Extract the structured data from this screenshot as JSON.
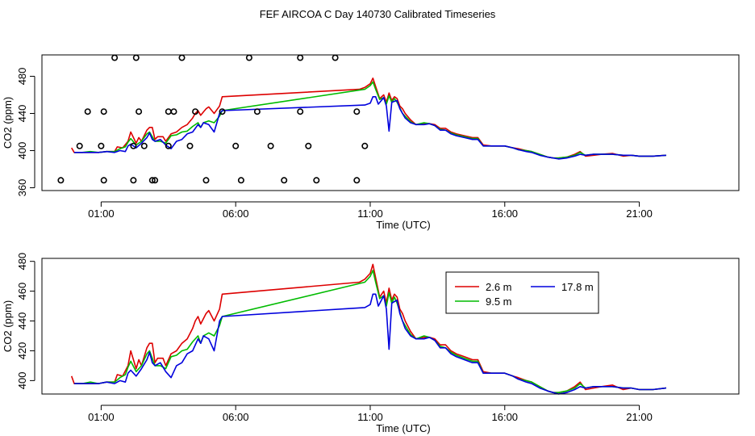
{
  "title": "FEF AIRCOA C  Day 140730  Calibrated Timeseries",
  "colors": {
    "s2_6": "#dd0000",
    "s9_5": "#00bb00",
    "s17_8": "#0000dd",
    "axis": "#000000"
  },
  "chart_data": [
    {
      "type": "line",
      "name": "top-panel",
      "xlabel": "Time (UTC)",
      "ylabel": "CO2 (ppm)",
      "xlim": [
        -1.2,
        24.7
      ],
      "ylim": [
        357,
        503
      ],
      "xticks": [
        1,
        6,
        11,
        16,
        21
      ],
      "xtick_labels": [
        "01:00",
        "06:00",
        "11:00",
        "16:00",
        "21:00"
      ],
      "yticks": [
        360,
        400,
        440,
        480
      ],
      "ytick_labels": [
        "360",
        "400",
        "440",
        "480"
      ],
      "markers": {
        "symbol": "open-circle",
        "points": [
          [
            1.0,
            405
          ],
          [
            0.5,
            442
          ],
          [
            -0.5,
            368
          ],
          [
            0.2,
            405
          ],
          [
            1.1,
            442
          ],
          [
            1.1,
            368
          ],
          [
            3.0,
            368
          ],
          [
            2.6,
            405
          ],
          [
            2.2,
            368
          ],
          [
            2.4,
            442
          ],
          [
            2.2,
            405
          ],
          [
            2.3,
            500
          ],
          [
            1.5,
            500
          ],
          [
            3.5,
            442
          ],
          [
            4.0,
            500
          ],
          [
            3.7,
            442
          ],
          [
            2.9,
            368
          ],
          [
            3.5,
            405
          ],
          [
            4.3,
            405
          ],
          [
            4.5,
            442
          ],
          [
            4.9,
            368
          ],
          [
            5.5,
            442
          ],
          [
            6.0,
            405
          ],
          [
            6.5,
            500
          ],
          [
            6.2,
            368
          ],
          [
            6.8,
            442
          ],
          [
            7.3,
            405
          ],
          [
            7.8,
            368
          ],
          [
            8.4,
            500
          ],
          [
            8.4,
            442
          ],
          [
            8.7,
            405
          ],
          [
            9.0,
            368
          ],
          [
            9.7,
            500
          ],
          [
            10.5,
            442
          ],
          [
            10.8,
            405
          ],
          [
            10.5,
            368
          ]
        ]
      },
      "series": [
        {
          "name": "2.6 m",
          "color_key": "s2_6"
        },
        {
          "name": "9.5 m",
          "color_key": "s9_5"
        },
        {
          "name": "17.8 m",
          "color_key": "s17_8"
        }
      ]
    },
    {
      "type": "line",
      "name": "bottom-panel",
      "xlabel": "Time (UTC)",
      "ylabel": "CO2 (ppm)",
      "xlim": [
        -1.2,
        24.7
      ],
      "ylim": [
        391,
        482
      ],
      "xticks": [
        1,
        6,
        11,
        16,
        21
      ],
      "xtick_labels": [
        "01:00",
        "06:00",
        "11:00",
        "16:00",
        "21:00"
      ],
      "yticks": [
        400,
        420,
        440,
        460,
        480
      ],
      "ytick_labels": [
        "400",
        "420",
        "440",
        "460",
        "480"
      ],
      "legend": {
        "position": "top-right",
        "entries": [
          {
            "label": "2.6 m",
            "color_key": "s2_6"
          },
          {
            "label": "9.5 m",
            "color_key": "s9_5"
          },
          {
            "label": "17.8 m",
            "color_key": "s17_8"
          }
        ]
      },
      "series": [
        {
          "name": "2.6 m",
          "color_key": "s2_6"
        },
        {
          "name": "9.5 m",
          "color_key": "s9_5"
        },
        {
          "name": "17.8 m",
          "color_key": "s17_8"
        }
      ]
    }
  ],
  "series_data": {
    "2.6 m": [
      [
        -0.1,
        403
      ],
      [
        0.0,
        398
      ],
      [
        0.3,
        398
      ],
      [
        0.6,
        398
      ],
      [
        0.9,
        398
      ],
      [
        1.2,
        399
      ],
      [
        1.5,
        399
      ],
      [
        1.6,
        404
      ],
      [
        1.8,
        403
      ],
      [
        2.0,
        410
      ],
      [
        2.1,
        420
      ],
      [
        2.3,
        408
      ],
      [
        2.4,
        414
      ],
      [
        2.5,
        410
      ],
      [
        2.7,
        422
      ],
      [
        2.8,
        425
      ],
      [
        2.9,
        425
      ],
      [
        3.0,
        412
      ],
      [
        3.1,
        415
      ],
      [
        3.3,
        415
      ],
      [
        3.4,
        410
      ],
      [
        3.6,
        418
      ],
      [
        3.8,
        420
      ],
      [
        4.0,
        425
      ],
      [
        4.2,
        428
      ],
      [
        4.4,
        435
      ],
      [
        4.5,
        440
      ],
      [
        4.6,
        443
      ],
      [
        4.7,
        438
      ],
      [
        4.9,
        445
      ],
      [
        5.0,
        447
      ],
      [
        5.2,
        440
      ],
      [
        5.4,
        448
      ],
      [
        5.5,
        458
      ],
      [
        10.6,
        466
      ],
      [
        10.8,
        468
      ],
      [
        11.0,
        472
      ],
      [
        11.1,
        478
      ],
      [
        11.2,
        469
      ],
      [
        11.35,
        456
      ],
      [
        11.5,
        460
      ],
      [
        11.6,
        452
      ],
      [
        11.7,
        462
      ],
      [
        11.8,
        454
      ],
      [
        11.9,
        458
      ],
      [
        12.0,
        456
      ],
      [
        12.1,
        448
      ],
      [
        12.2,
        445
      ],
      [
        12.3,
        440
      ],
      [
        12.5,
        433
      ],
      [
        12.7,
        428
      ],
      [
        13.0,
        429
      ],
      [
        13.2,
        429
      ],
      [
        13.4,
        428
      ],
      [
        13.6,
        424
      ],
      [
        13.8,
        424
      ],
      [
        14.0,
        420
      ],
      [
        14.2,
        418
      ],
      [
        14.5,
        416
      ],
      [
        14.8,
        414
      ],
      [
        15.0,
        414
      ],
      [
        15.2,
        406
      ],
      [
        15.5,
        405
      ],
      [
        16.0,
        405
      ],
      [
        16.3,
        403
      ],
      [
        16.5,
        402
      ],
      [
        16.8,
        400
      ],
      [
        17.0,
        399
      ],
      [
        17.3,
        396
      ],
      [
        17.6,
        393
      ],
      [
        17.8,
        392
      ],
      [
        18.0,
        392
      ],
      [
        18.3,
        393
      ],
      [
        18.6,
        396
      ],
      [
        18.8,
        399
      ],
      [
        19.0,
        394
      ],
      [
        19.3,
        395
      ],
      [
        19.6,
        396
      ],
      [
        20.0,
        397
      ],
      [
        20.4,
        394
      ],
      [
        20.7,
        395
      ],
      [
        21.0,
        394
      ],
      [
        21.5,
        394
      ],
      [
        22.0,
        395
      ]
    ],
    "9.5 m": [
      [
        0.0,
        398
      ],
      [
        0.3,
        398
      ],
      [
        0.6,
        399
      ],
      [
        0.9,
        398
      ],
      [
        1.2,
        399
      ],
      [
        1.5,
        399
      ],
      [
        1.7,
        402
      ],
      [
        1.9,
        404
      ],
      [
        2.0,
        409
      ],
      [
        2.1,
        413
      ],
      [
        2.3,
        406
      ],
      [
        2.5,
        410
      ],
      [
        2.7,
        418
      ],
      [
        2.8,
        420
      ],
      [
        2.9,
        415
      ],
      [
        3.0,
        410
      ],
      [
        3.2,
        410
      ],
      [
        3.4,
        408
      ],
      [
        3.6,
        416
      ],
      [
        3.8,
        417
      ],
      [
        4.0,
        420
      ],
      [
        4.2,
        421
      ],
      [
        4.4,
        426
      ],
      [
        4.6,
        430
      ],
      [
        4.7,
        425
      ],
      [
        4.8,
        430
      ],
      [
        5.0,
        432
      ],
      [
        5.2,
        430
      ],
      [
        5.4,
        437
      ],
      [
        5.5,
        443
      ],
      [
        10.8,
        466
      ],
      [
        11.0,
        470
      ],
      [
        11.1,
        474
      ],
      [
        11.2,
        466
      ],
      [
        11.35,
        455
      ],
      [
        11.5,
        457
      ],
      [
        11.6,
        450
      ],
      [
        11.7,
        459
      ],
      [
        11.8,
        452
      ],
      [
        11.9,
        456
      ],
      [
        12.0,
        452
      ],
      [
        12.1,
        446
      ],
      [
        12.2,
        440
      ],
      [
        12.3,
        437
      ],
      [
        12.5,
        431
      ],
      [
        12.7,
        428
      ],
      [
        13.0,
        430
      ],
      [
        13.2,
        429
      ],
      [
        13.4,
        427
      ],
      [
        13.6,
        423
      ],
      [
        13.8,
        422
      ],
      [
        14.0,
        419
      ],
      [
        14.2,
        417
      ],
      [
        14.5,
        415
      ],
      [
        14.8,
        413
      ],
      [
        15.0,
        413
      ],
      [
        15.2,
        405
      ],
      [
        15.5,
        405
      ],
      [
        16.0,
        405
      ],
      [
        16.3,
        403
      ],
      [
        16.5,
        401
      ],
      [
        16.8,
        400
      ],
      [
        17.0,
        399
      ],
      [
        17.3,
        396
      ],
      [
        17.6,
        393
      ],
      [
        17.8,
        392
      ],
      [
        18.0,
        392
      ],
      [
        18.3,
        393
      ],
      [
        18.6,
        395
      ],
      [
        18.8,
        398
      ],
      [
        19.0,
        395
      ],
      [
        19.3,
        396
      ],
      [
        19.6,
        396
      ],
      [
        20.0,
        396
      ],
      [
        20.4,
        395
      ],
      [
        20.7,
        395
      ],
      [
        21.0,
        394
      ],
      [
        21.5,
        394
      ],
      [
        22.0,
        395
      ]
    ],
    "17.8 m": [
      [
        0.0,
        398
      ],
      [
        0.3,
        398
      ],
      [
        0.6,
        398
      ],
      [
        0.9,
        398
      ],
      [
        1.2,
        399
      ],
      [
        1.5,
        398
      ],
      [
        1.7,
        400
      ],
      [
        1.9,
        399
      ],
      [
        2.0,
        405
      ],
      [
        2.1,
        407
      ],
      [
        2.3,
        403
      ],
      [
        2.5,
        408
      ],
      [
        2.7,
        414
      ],
      [
        2.8,
        419
      ],
      [
        2.9,
        412
      ],
      [
        3.0,
        410
      ],
      [
        3.2,
        412
      ],
      [
        3.4,
        406
      ],
      [
        3.6,
        402
      ],
      [
        3.8,
        410
      ],
      [
        4.0,
        412
      ],
      [
        4.2,
        418
      ],
      [
        4.4,
        420
      ],
      [
        4.6,
        428
      ],
      [
        4.7,
        425
      ],
      [
        4.8,
        430
      ],
      [
        5.0,
        428
      ],
      [
        5.2,
        420
      ],
      [
        5.4,
        440
      ],
      [
        5.5,
        443
      ],
      [
        10.8,
        449
      ],
      [
        11.0,
        451
      ],
      [
        11.1,
        458
      ],
      [
        11.2,
        458
      ],
      [
        11.3,
        450
      ],
      [
        11.5,
        457
      ],
      [
        11.6,
        448
      ],
      [
        11.7,
        421
      ],
      [
        11.8,
        452
      ],
      [
        11.9,
        453
      ],
      [
        12.0,
        454
      ],
      [
        12.1,
        445
      ],
      [
        12.2,
        440
      ],
      [
        12.3,
        435
      ],
      [
        12.5,
        430
      ],
      [
        12.7,
        428
      ],
      [
        13.0,
        428
      ],
      [
        13.2,
        429
      ],
      [
        13.4,
        427
      ],
      [
        13.6,
        422
      ],
      [
        13.8,
        422
      ],
      [
        14.0,
        418
      ],
      [
        14.2,
        416
      ],
      [
        14.5,
        414
      ],
      [
        14.8,
        412
      ],
      [
        15.0,
        412
      ],
      [
        15.2,
        405
      ],
      [
        15.5,
        405
      ],
      [
        16.0,
        405
      ],
      [
        16.3,
        403
      ],
      [
        16.5,
        401
      ],
      [
        16.8,
        399
      ],
      [
        17.0,
        398
      ],
      [
        17.3,
        395
      ],
      [
        17.6,
        393
      ],
      [
        17.8,
        392
      ],
      [
        18.0,
        391
      ],
      [
        18.3,
        392
      ],
      [
        18.6,
        394
      ],
      [
        18.8,
        396
      ],
      [
        19.0,
        395
      ],
      [
        19.3,
        396
      ],
      [
        19.6,
        396
      ],
      [
        20.0,
        396
      ],
      [
        20.4,
        395
      ],
      [
        20.7,
        395
      ],
      [
        21.0,
        394
      ],
      [
        21.5,
        394
      ],
      [
        22.0,
        395
      ]
    ]
  }
}
